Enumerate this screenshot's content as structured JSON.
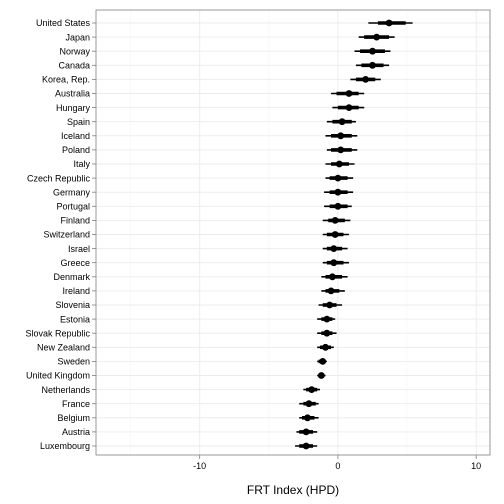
{
  "chart_data": {
    "type": "dot-interval",
    "xlabel": "FRT Index (HPD)",
    "xlim": [
      -17.5,
      11.0
    ],
    "xticks": [
      -10,
      0,
      10
    ],
    "grid": true,
    "colors": {
      "panel": "#ffffff",
      "grid_major": "#ebebeb",
      "grid_minor": "#f5f5f5",
      "border": "#7f7f7f",
      "mark": "#000000"
    },
    "countries": [
      {
        "name": "United States",
        "mean": 3.7,
        "inner": [
          2.9,
          4.9
        ],
        "outer": [
          2.2,
          5.4
        ]
      },
      {
        "name": "Japan",
        "mean": 2.8,
        "inner": [
          1.9,
          3.7
        ],
        "outer": [
          1.5,
          4.1
        ]
      },
      {
        "name": "Norway",
        "mean": 2.5,
        "inner": [
          1.6,
          3.4
        ],
        "outer": [
          1.2,
          3.8
        ]
      },
      {
        "name": "Canada",
        "mean": 2.5,
        "inner": [
          1.7,
          3.3
        ],
        "outer": [
          1.3,
          3.7
        ]
      },
      {
        "name": "Korea, Rep.",
        "mean": 2.0,
        "inner": [
          1.3,
          2.7
        ],
        "outer": [
          0.9,
          3.1
        ]
      },
      {
        "name": "Australia",
        "mean": 0.8,
        "inner": [
          -0.1,
          1.5
        ],
        "outer": [
          -0.5,
          1.9
        ]
      },
      {
        "name": "Hungary",
        "mean": 0.8,
        "inner": [
          0.0,
          1.5
        ],
        "outer": [
          -0.4,
          1.9
        ]
      },
      {
        "name": "Spain",
        "mean": 0.3,
        "inner": [
          -0.4,
          1.0
        ],
        "outer": [
          -0.8,
          1.3
        ]
      },
      {
        "name": "Iceland",
        "mean": 0.2,
        "inner": [
          -0.5,
          1.0
        ],
        "outer": [
          -0.9,
          1.4
        ]
      },
      {
        "name": "Poland",
        "mean": 0.2,
        "inner": [
          -0.5,
          1.0
        ],
        "outer": [
          -0.8,
          1.4
        ]
      },
      {
        "name": "Italy",
        "mean": 0.1,
        "inner": [
          -0.5,
          0.8
        ],
        "outer": [
          -0.9,
          1.2
        ]
      },
      {
        "name": "Czech Republic",
        "mean": 0.0,
        "inner": [
          -0.6,
          0.7
        ],
        "outer": [
          -0.9,
          1.1
        ]
      },
      {
        "name": "Germany",
        "mean": 0.0,
        "inner": [
          -0.6,
          0.7
        ],
        "outer": [
          -1.0,
          1.1
        ]
      },
      {
        "name": "Portugal",
        "mean": 0.0,
        "inner": [
          -0.6,
          0.7
        ],
        "outer": [
          -1.0,
          1.0
        ]
      },
      {
        "name": "Finland",
        "mean": -0.2,
        "inner": [
          -0.7,
          0.5
        ],
        "outer": [
          -1.1,
          0.9
        ]
      },
      {
        "name": "Switzerland",
        "mean": -0.2,
        "inner": [
          -0.8,
          0.4
        ],
        "outer": [
          -1.1,
          0.8
        ]
      },
      {
        "name": "Israel",
        "mean": -0.3,
        "inner": [
          -0.8,
          0.3
        ],
        "outer": [
          -1.1,
          0.7
        ]
      },
      {
        "name": "Greece",
        "mean": -0.3,
        "inner": [
          -0.8,
          0.4
        ],
        "outer": [
          -1.1,
          0.8
        ]
      },
      {
        "name": "Denmark",
        "mean": -0.4,
        "inner": [
          -0.9,
          0.3
        ],
        "outer": [
          -1.2,
          0.7
        ]
      },
      {
        "name": "Ireland",
        "mean": -0.5,
        "inner": [
          -0.9,
          0.1
        ],
        "outer": [
          -1.2,
          0.5
        ]
      },
      {
        "name": "Slovenia",
        "mean": -0.6,
        "inner": [
          -1.1,
          -0.1
        ],
        "outer": [
          -1.4,
          0.3
        ]
      },
      {
        "name": "Estonia",
        "mean": -0.8,
        "inner": [
          -1.2,
          -0.4
        ],
        "outer": [
          -1.5,
          -0.2
        ]
      },
      {
        "name": "Slovak Republic",
        "mean": -0.8,
        "inner": [
          -1.2,
          -0.4
        ],
        "outer": [
          -1.5,
          -0.1
        ]
      },
      {
        "name": "New Zealand",
        "mean": -0.9,
        "inner": [
          -1.3,
          -0.5
        ],
        "outer": [
          -1.5,
          -0.3
        ]
      },
      {
        "name": "Sweden",
        "mean": -1.1,
        "inner": [
          -1.4,
          -0.9
        ],
        "outer": [
          -1.5,
          -0.8
        ]
      },
      {
        "name": "United Kingdom",
        "mean": -1.2,
        "inner": [
          -1.4,
          -1.0
        ],
        "outer": [
          -1.5,
          -0.9
        ]
      },
      {
        "name": "Netherlands",
        "mean": -1.9,
        "inner": [
          -2.3,
          -1.5
        ],
        "outer": [
          -2.5,
          -1.3
        ]
      },
      {
        "name": "France",
        "mean": -2.1,
        "inner": [
          -2.5,
          -1.6
        ],
        "outer": [
          -2.8,
          -1.4
        ]
      },
      {
        "name": "Belgium",
        "mean": -2.2,
        "inner": [
          -2.6,
          -1.7
        ],
        "outer": [
          -2.8,
          -1.4
        ]
      },
      {
        "name": "Austria",
        "mean": -2.3,
        "inner": [
          -2.8,
          -1.8
        ],
        "outer": [
          -3.0,
          -1.5
        ]
      },
      {
        "name": "Luxembourg",
        "mean": -2.3,
        "inner": [
          -2.8,
          -1.8
        ],
        "outer": [
          -3.1,
          -1.5
        ]
      }
    ]
  }
}
